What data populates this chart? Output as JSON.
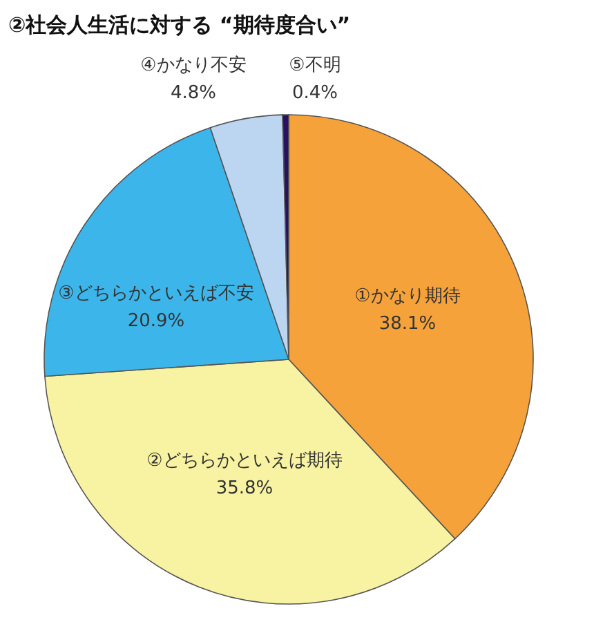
{
  "chart_data": {
    "type": "pie",
    "title": "②社会人生活に対する “期待度合い”",
    "categories": [
      "①かなり期待",
      "②どちらかといえば期待",
      "③どちらかといえば不安",
      "④かなり不安",
      "⑤不明"
    ],
    "values": [
      38.1,
      35.8,
      20.9,
      4.8,
      0.4
    ],
    "colors": [
      "#f6a23a",
      "#f8f3a2",
      "#3cb6ea",
      "#bcd6f2",
      "#2a1060"
    ],
    "value_labels": [
      "38.1%",
      "35.8%",
      "20.9%",
      "4.8%",
      "0.4%"
    ],
    "legend": false
  }
}
